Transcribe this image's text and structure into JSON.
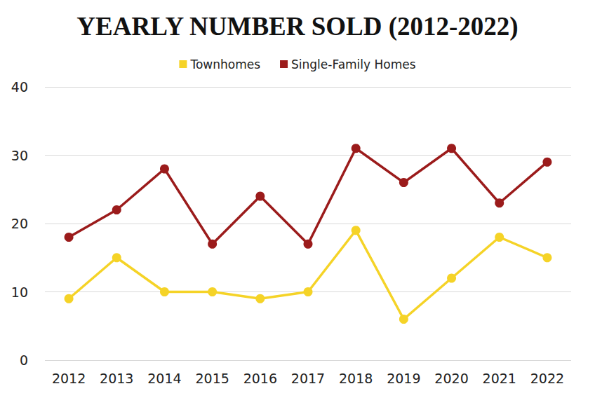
{
  "chart_data": {
    "type": "line",
    "title": "YEARLY NUMBER SOLD (2012-2022)",
    "categories": [
      "2012",
      "2013",
      "2014",
      "2015",
      "2016",
      "2017",
      "2018",
      "2019",
      "2020",
      "2021",
      "2022"
    ],
    "series": [
      {
        "name": "Townhomes",
        "color": "#f5d327",
        "values": [
          9,
          15,
          10,
          10,
          9,
          10,
          19,
          6,
          12,
          18,
          15
        ]
      },
      {
        "name": "Single-Family Homes",
        "color": "#9b1b1b",
        "values": [
          18,
          22,
          28,
          17,
          24,
          17,
          31,
          26,
          31,
          23,
          29
        ]
      }
    ],
    "ylim": [
      0,
      40
    ],
    "yticks": [
      0,
      10,
      20,
      30,
      40
    ],
    "grid": true,
    "legend": "top",
    "marker": "circle"
  }
}
